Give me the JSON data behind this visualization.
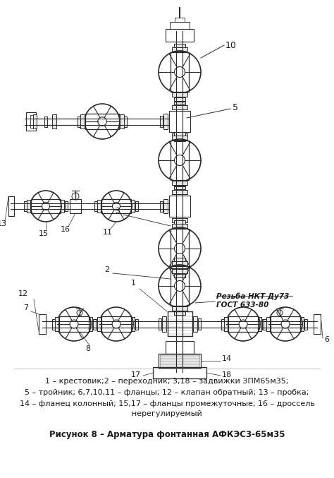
{
  "caption_line1": "1 – крестовик;2 – переходник; 3,18 – задвижки ЗПМ65м35;",
  "caption_line2": "5 – тройник; 6,7,10,11 – фланцы; 12 – клапан обратный; 13 – пробка;",
  "caption_line3": "14 – фланец колонный; 15,17 – фланцы промежуточные; 16 – дроссель",
  "caption_line4": "нерегулируемый",
  "figure_label": "Рисунок 8 – Арматура фонтанная АФКЭС3-65м35",
  "bg_color": "#ffffff",
  "line_color": "#2a2a2a",
  "text_color": "#1a1a1a"
}
